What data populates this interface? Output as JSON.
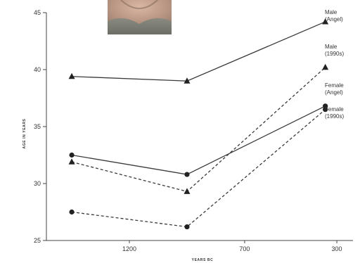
{
  "chart_data": {
    "type": "line",
    "xlabel": "YEARS BC",
    "ylabel": "AGE IN YEARS",
    "xlim": [
      1560,
      230
    ],
    "ylim": [
      25,
      45
    ],
    "x_ticks": [
      1200,
      700,
      300
    ],
    "y_ticks": [
      25,
      30,
      35,
      40,
      45
    ],
    "x": [
      1450,
      950,
      350
    ],
    "series": [
      {
        "name": "Male (Angel)",
        "legend": [
          "Male",
          "(Angel)"
        ],
        "values": [
          39.4,
          39.0,
          44.2
        ],
        "marker": "triangle",
        "line": "solid"
      },
      {
        "name": "Male (1990s)",
        "legend": [
          "Male",
          "(1990s)"
        ],
        "values": [
          31.9,
          29.3,
          40.2
        ],
        "marker": "triangle",
        "line": "dashed"
      },
      {
        "name": "Female (Angel)",
        "legend": [
          "Female",
          "(Angel)"
        ],
        "values": [
          32.5,
          30.8,
          36.8
        ],
        "marker": "circle",
        "line": "solid"
      },
      {
        "name": "Female (1990s)",
        "legend": [
          "Female",
          "(1990s)"
        ],
        "values": [
          27.5,
          26.2,
          36.5
        ],
        "marker": "circle",
        "line": "dashed"
      }
    ],
    "colors": {
      "line": "#3a3a3a",
      "axis": "#444444"
    }
  },
  "photo": {
    "icon": "portrait-photo-icon",
    "colors": [
      "#c7a794",
      "#9e8373",
      "#6e7068"
    ]
  }
}
